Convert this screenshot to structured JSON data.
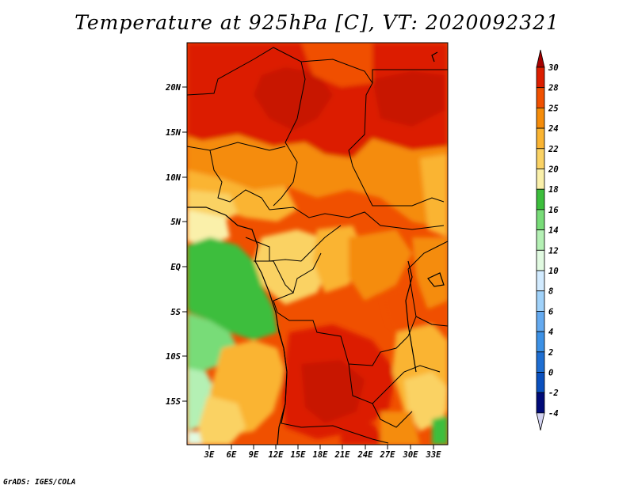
{
  "title": "Temperature at 925hPa [C], VT: 2020092321",
  "credit": "GrADS: IGES/COLA",
  "map": {
    "lat_labels": [
      "20N",
      "15N",
      "10N",
      "5N",
      "EQ",
      "5S",
      "10S",
      "15S"
    ],
    "lon_labels": [
      "3E",
      "6E",
      "9E",
      "12E",
      "15E",
      "18E",
      "21E",
      "24E",
      "27E",
      "30E",
      "33E"
    ],
    "field": "Temperature at 925hPa",
    "units": "C"
  },
  "colorbar": {
    "labels": [
      "30",
      "28",
      "25",
      "24",
      "22",
      "20",
      "18",
      "16",
      "14",
      "12",
      "10",
      "8",
      "6",
      "4",
      "2",
      "0",
      "-2",
      "-4"
    ],
    "colors": [
      "#a50000",
      "#dc1e00",
      "#f05000",
      "#f58c0a",
      "#fab432",
      "#fad264",
      "#faf0aa",
      "#3cbe3c",
      "#78dc78",
      "#b4f0b4",
      "#e1fae1",
      "#d2ebff",
      "#a0d2fa",
      "#64aaf0",
      "#3c91e6",
      "#1e6ed2",
      "#0a50be",
      "#000a78",
      "#1e3c82",
      "#d2d2f0"
    ]
  }
}
